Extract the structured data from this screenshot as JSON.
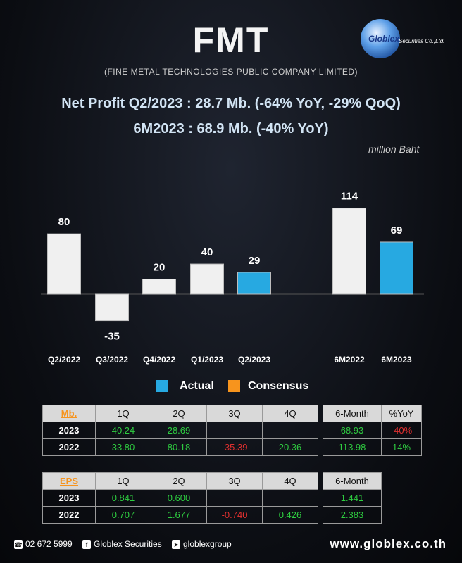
{
  "header": {
    "title": "FMT",
    "subtitle": "(FINE METAL TECHNOLOGIES PUBLIC COMPANY LIMITED)",
    "logo_text": "Globlex",
    "logo_sub": "Securities Co.,Ltd.",
    "headline1": "Net Profit  Q2/2023 : 28.7 Mb. (-64% YoY, -29% QoQ)",
    "headline2": "6M2023 : 68.9 Mb. (-40% YoY)",
    "unit": "million Baht"
  },
  "colors": {
    "actual": "#27a9e1",
    "consensus": "#f7941d",
    "past": "#f0f0f0"
  },
  "chart_data": {
    "type": "bar",
    "categories": [
      "Q2/2022",
      "Q3/2022",
      "Q4/2022",
      "Q1/2023",
      "Q2/2023",
      "6M2022",
      "6M2023"
    ],
    "values": [
      80,
      -35,
      20,
      40,
      29,
      114,
      69
    ],
    "labels": [
      "80",
      "-35",
      "20",
      "40",
      "29",
      "114",
      "69"
    ],
    "highlight": [
      "Q2/2023",
      "6M2023"
    ],
    "legend": [
      "Actual",
      "Consensus"
    ],
    "legend_placement": "bottom-center",
    "grid": false
  },
  "legend": {
    "actual": "Actual",
    "consensus": "Consensus"
  },
  "table_mb": {
    "headers": [
      "Mb.",
      "1Q",
      "2Q",
      "3Q",
      "4Q"
    ],
    "rows": [
      {
        "year": "2023",
        "cells": [
          "40.24",
          "28.69",
          "",
          ""
        ]
      },
      {
        "year": "2022",
        "cells": [
          "33.80",
          "80.18",
          "-35.39",
          "20.36"
        ]
      }
    ]
  },
  "table_6m": {
    "headers": [
      "6-Month",
      "%YoY"
    ],
    "rows": [
      {
        "cells": [
          "68.93",
          "-40%"
        ]
      },
      {
        "cells": [
          "113.98",
          "14%"
        ]
      }
    ]
  },
  "table_eps": {
    "headers": [
      "EPS",
      "1Q",
      "2Q",
      "3Q",
      "4Q"
    ],
    "rows": [
      {
        "year": "2023",
        "cells": [
          "0.841",
          "0.600",
          "",
          ""
        ]
      },
      {
        "year": "2022",
        "cells": [
          "0.707",
          "1.677",
          "-0.740",
          "0.426"
        ]
      }
    ]
  },
  "table_eps6m": {
    "headers": [
      "6-Month"
    ],
    "rows": [
      {
        "cells": [
          "1.441"
        ]
      },
      {
        "cells": [
          "2.383"
        ]
      }
    ]
  },
  "footer": {
    "phone": "02 672 5999",
    "facebook": "Globlex Securities",
    "telegram": "globlexgroup",
    "website": "www.globlex.co.th"
  }
}
